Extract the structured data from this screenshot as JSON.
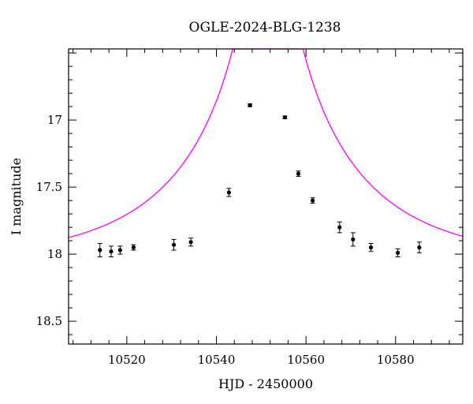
{
  "chart_data": {
    "type": "scatter",
    "title": "OGLE-2024-BLG-1238",
    "xlabel": "HJD - 2450000",
    "ylabel": "I magnitude",
    "xlim": [
      10507,
      10595
    ],
    "ylim": [
      18.67,
      16.47
    ],
    "y_inverted": true,
    "x_ticks": [
      10520,
      10540,
      10560,
      10580
    ],
    "x_tick_labels": [
      "10520",
      "10540",
      "10560",
      "10580"
    ],
    "y_ticks": [
      17,
      17.5,
      18,
      18.5
    ],
    "y_tick_labels": [
      "17",
      "17.5",
      "18",
      "18.5"
    ],
    "grid": false,
    "model_color": "#ff00ff",
    "point_color": "#000000",
    "model": {
      "t0": 10551.5,
      "u0": 0.007,
      "tE": 33,
      "I_base": 18.05
    },
    "points": [
      {
        "x": 10514.0,
        "y": 17.97,
        "err": 0.05
      },
      {
        "x": 10516.5,
        "y": 17.98,
        "err": 0.04
      },
      {
        "x": 10518.5,
        "y": 17.97,
        "err": 0.03
      },
      {
        "x": 10521.5,
        "y": 17.95,
        "err": 0.02
      },
      {
        "x": 10530.5,
        "y": 17.93,
        "err": 0.04
      },
      {
        "x": 10534.3,
        "y": 17.91,
        "err": 0.03
      },
      {
        "x": 10542.8,
        "y": 17.54,
        "err": 0.03
      },
      {
        "x": 10547.5,
        "y": 16.89,
        "err": 0.01
      },
      {
        "x": 10555.3,
        "y": 16.98,
        "err": 0.01
      },
      {
        "x": 10558.3,
        "y": 17.4,
        "err": 0.02
      },
      {
        "x": 10561.5,
        "y": 17.6,
        "err": 0.02
      },
      {
        "x": 10567.5,
        "y": 17.8,
        "err": 0.04
      },
      {
        "x": 10570.5,
        "y": 17.89,
        "err": 0.05
      },
      {
        "x": 10574.5,
        "y": 17.95,
        "err": 0.03
      },
      {
        "x": 10580.5,
        "y": 17.99,
        "err": 0.03
      },
      {
        "x": 10585.3,
        "y": 17.95,
        "err": 0.04
      }
    ]
  }
}
